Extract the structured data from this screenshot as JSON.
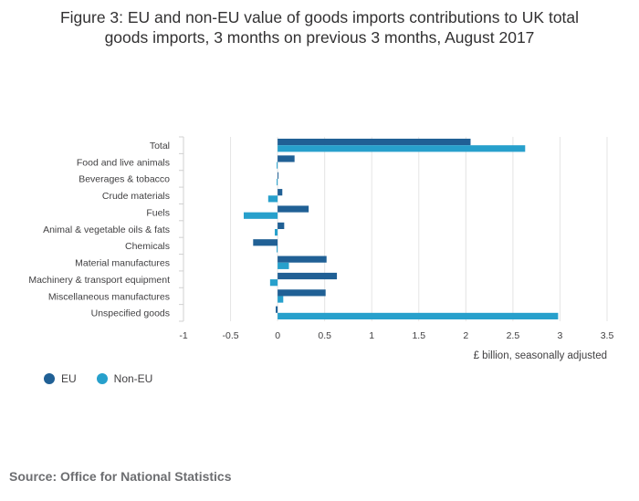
{
  "title_lines": [
    "Figure 3: EU and non-EU value of goods imports contributions to UK total",
    "goods imports, 3 months on previous 3 months, August 2017"
  ],
  "source": "Source: Office for National Statistics",
  "colors": {
    "eu": "#206095",
    "non_eu": "#27a0cc",
    "grid": "#e4e4e4",
    "axis": "#d0d0d0"
  },
  "legend": [
    {
      "label": "EU",
      "color": "#206095"
    },
    {
      "label": "Non-EU",
      "color": "#27a0cc"
    }
  ],
  "chart_data": {
    "type": "bar",
    "orientation": "horizontal",
    "title": "Figure 3: EU and non-EU value of goods imports contributions to UK total goods imports, 3 months on previous 3 months, August 2017",
    "xlabel": "£ billion, seasonally adjusted",
    "ylabel": "",
    "xlim": [
      -1,
      3.5
    ],
    "xticks": [
      -1,
      -0.5,
      0,
      0.5,
      1,
      1.5,
      2,
      2.5,
      3,
      3.5
    ],
    "xtick_labels": [
      "-1",
      "-0.5",
      "0",
      "0.5",
      "1",
      "1.5",
      "2",
      "2.5",
      "3",
      "3.5"
    ],
    "categories": [
      "Total",
      "Food and live animals",
      "Beverages & tobacco",
      "Crude materials",
      "Fuels",
      "Animal & vegetable oils & fats",
      "Chemicals",
      "Material manufactures",
      "Machinery & transport equipment",
      "Miscellaneous manufactures",
      "Unspecified goods"
    ],
    "series": [
      {
        "name": "EU",
        "values": [
          2.05,
          0.18,
          0.0,
          0.05,
          0.33,
          0.07,
          -0.26,
          0.52,
          0.63,
          0.51,
          -0.02
        ]
      },
      {
        "name": "Non-EU",
        "values": [
          2.63,
          -0.01,
          -0.01,
          -0.1,
          -0.36,
          -0.03,
          -0.01,
          0.12,
          -0.08,
          0.06,
          2.98
        ]
      }
    ],
    "grid": true,
    "legend_position": "bottom-left"
  }
}
